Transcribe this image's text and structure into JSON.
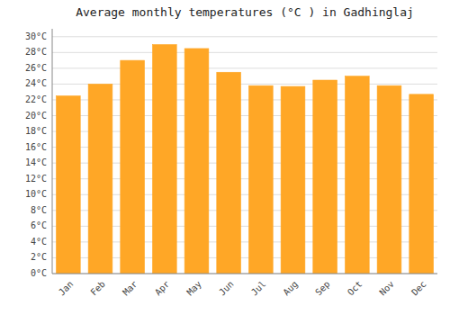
{
  "chart_data": {
    "type": "bar",
    "title": "Average monthly temperatures (°C ) in Gadhinglaj",
    "categories": [
      "Jan",
      "Feb",
      "Mar",
      "Apr",
      "May",
      "Jun",
      "Jul",
      "Aug",
      "Sep",
      "Oct",
      "Nov",
      "Dec"
    ],
    "values": [
      22.5,
      24.0,
      27.0,
      29.0,
      28.5,
      25.5,
      23.8,
      23.7,
      24.5,
      25.0,
      23.8,
      22.7
    ],
    "color": "#FFA726",
    "ylim": [
      0,
      31
    ],
    "yticks": [
      {
        "value": 0,
        "label": "0°C"
      },
      {
        "value": 2,
        "label": "2°C"
      },
      {
        "value": 4,
        "label": "4°C"
      },
      {
        "value": 6,
        "label": "6°C"
      },
      {
        "value": 8,
        "label": "8°C"
      },
      {
        "value": 10,
        "label": "10°C"
      },
      {
        "value": 12,
        "label": "12°C"
      },
      {
        "value": 14,
        "label": "14°C"
      },
      {
        "value": 16,
        "label": "16°C"
      },
      {
        "value": 18,
        "label": "18°C"
      },
      {
        "value": 20,
        "label": "20°C"
      },
      {
        "value": 22,
        "label": "22°C"
      },
      {
        "value": 24,
        "label": "24°C"
      },
      {
        "value": 26,
        "label": "26°C"
      },
      {
        "value": 28,
        "label": "28°C"
      },
      {
        "value": 30,
        "label": "30°C"
      }
    ],
    "grid": true
  }
}
